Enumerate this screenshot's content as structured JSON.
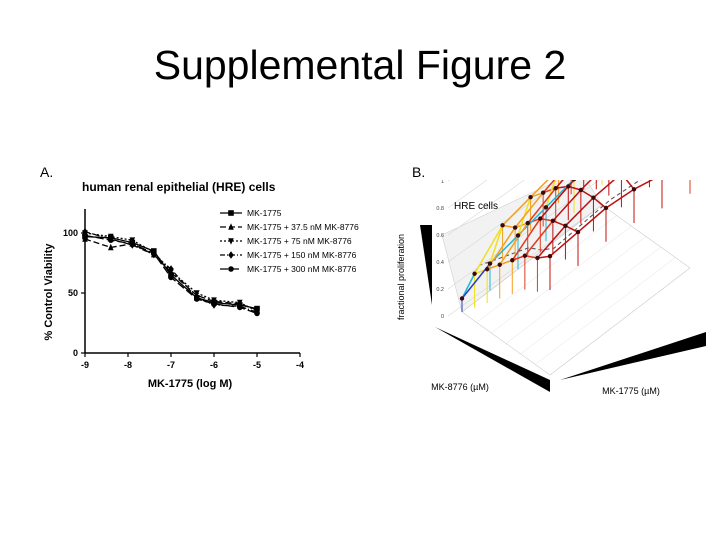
{
  "slide": {
    "title": "Supplemental Figure 2"
  },
  "panel_a": {
    "label": "A."
  },
  "panel_b": {
    "label": "B."
  },
  "chart_data": [
    {
      "type": "line",
      "title": "human renal epithelial (HRE) cells",
      "xlabel": "MK-1775  (log M)",
      "ylabel": "% Control Viability",
      "xlim": [
        -9,
        -4
      ],
      "ylim": [
        0,
        120
      ],
      "xticks": [
        -9,
        -8,
        -7,
        -6,
        -5,
        -4
      ],
      "yticks": [
        0,
        50,
        100
      ],
      "legend_position": "top-right",
      "series": [
        {
          "name": "MK-1775",
          "marker": "square",
          "dash": "solid",
          "x": [
            -9,
            -8.4,
            -7.9,
            -7.4,
            -7,
            -6.4,
            -6,
            -5.4,
            -5
          ],
          "y": [
            97,
            96,
            92,
            85,
            65,
            46,
            42,
            40,
            37
          ]
        },
        {
          "name": "MK-1775 + 37.5 nM MK-8776",
          "marker": "triangle",
          "dash": "6,3",
          "x": [
            -9,
            -8.4,
            -7.9,
            -7.4,
            -7,
            -6.4,
            -6,
            -5.4,
            -5
          ],
          "y": [
            95,
            88,
            91,
            82,
            67,
            48,
            43,
            41,
            36
          ]
        },
        {
          "name": "MK-1775 + 75 nM MK-8776",
          "marker": "triangle-down",
          "dash": "2,2",
          "x": [
            -9,
            -8.4,
            -7.9,
            -7.4,
            -7,
            -6.4,
            -6,
            -5.4,
            -5
          ],
          "y": [
            100,
            97,
            94,
            84,
            68,
            50,
            44,
            42,
            35
          ]
        },
        {
          "name": "MK-1775 + 150 nM MK-8776",
          "marker": "diamond",
          "dash": "5,2,1,2",
          "x": [
            -9,
            -8.4,
            -7.9,
            -7.4,
            -7,
            -6.4,
            -6,
            -5.4,
            -5
          ],
          "y": [
            101,
            95,
            90,
            82,
            70,
            46,
            40,
            39,
            34
          ]
        },
        {
          "name": "MK-1775 + 300 nM MK-8776",
          "marker": "circle",
          "dash": "8,3",
          "x": [
            -9,
            -8.4,
            -7.9,
            -7.4,
            -7,
            -6.4,
            -6,
            -5.4,
            -5
          ],
          "y": [
            98,
            94,
            91,
            83,
            63,
            45,
            41,
            38,
            33
          ]
        }
      ]
    },
    {
      "type": "surface-3d",
      "zlabel": "fractional proliferation",
      "xlabel": "MK-8776 (µM)",
      "ylabel": "MK-1775 (µM)",
      "annotation": "HRE cells",
      "zticks": [
        "0",
        "0.2",
        "0.4",
        "0.6",
        "0.8",
        "1"
      ],
      "grid_values": [
        [
          0.1,
          0.35,
          0.45,
          0.55,
          0.65,
          0.75,
          0.8,
          0.88
        ],
        [
          0.2,
          0.55,
          0.6,
          0.7,
          0.8,
          0.85,
          0.88,
          0.9
        ],
        [
          0.25,
          0.6,
          0.7,
          0.8,
          0.88,
          0.92,
          0.93,
          0.92
        ],
        [
          0.3,
          0.65,
          0.78,
          0.88,
          0.95,
          0.97,
          0.95,
          0.9
        ],
        [
          0.35,
          0.68,
          0.82,
          0.92,
          0.98,
          0.98,
          0.94,
          0.85
        ],
        [
          0.4,
          0.7,
          0.85,
          0.95,
          0.99,
          0.97,
          0.9,
          0.8
        ]
      ],
      "colors": [
        "#2a3fbf",
        "#22b8d8",
        "#f0e020",
        "#f2a020",
        "#e03a20",
        "#c01010"
      ]
    }
  ]
}
